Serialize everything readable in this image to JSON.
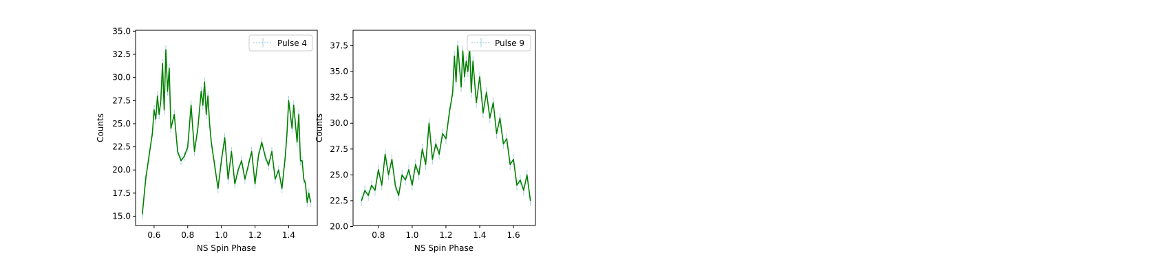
{
  "chart_data": [
    {
      "type": "line",
      "xlabel": "NS Spin Phase",
      "ylabel": "Counts",
      "xlim": [
        0.49,
        1.57
      ],
      "ylim": [
        14.0,
        35.1
      ],
      "xticks": [
        "0.6",
        "0.8",
        "1.0",
        "1.2",
        "1.4"
      ],
      "yticks": [
        "15.0",
        "17.5",
        "20.0",
        "22.5",
        "25.0",
        "27.5",
        "30.0",
        "32.5",
        "35.0"
      ],
      "legend": {
        "placement": "top-right",
        "label": "Pulse 4"
      },
      "series": [
        {
          "name": "Pulse 4",
          "color": "#008000",
          "errorbar_color": "#a6cee3",
          "error": 0.5,
          "x": [
            0.53,
            0.55,
            0.57,
            0.59,
            0.6,
            0.61,
            0.62,
            0.63,
            0.64,
            0.65,
            0.66,
            0.67,
            0.68,
            0.69,
            0.7,
            0.72,
            0.74,
            0.76,
            0.78,
            0.8,
            0.82,
            0.84,
            0.86,
            0.88,
            0.89,
            0.9,
            0.91,
            0.92,
            0.93,
            0.94,
            0.96,
            0.98,
            1.0,
            1.02,
            1.04,
            1.06,
            1.08,
            1.1,
            1.12,
            1.14,
            1.16,
            1.18,
            1.2,
            1.22,
            1.24,
            1.26,
            1.28,
            1.3,
            1.32,
            1.34,
            1.36,
            1.38,
            1.39,
            1.4,
            1.41,
            1.42,
            1.43,
            1.44,
            1.45,
            1.46,
            1.47,
            1.48,
            1.49,
            1.5,
            1.51,
            1.52,
            1.53
          ],
          "y": [
            15.2,
            19.0,
            21.5,
            24.0,
            26.5,
            25.5,
            28.0,
            26.0,
            27.5,
            31.5,
            26.5,
            33.0,
            28.5,
            31.0,
            24.5,
            26.0,
            22.0,
            21.0,
            21.5,
            22.5,
            27.0,
            22.0,
            24.5,
            28.5,
            27.0,
            29.5,
            26.0,
            28.0,
            25.0,
            23.0,
            20.5,
            18.0,
            21.0,
            23.5,
            19.0,
            22.0,
            18.5,
            20.0,
            21.0,
            19.0,
            20.5,
            22.0,
            18.5,
            21.5,
            23.0,
            21.5,
            20.5,
            22.0,
            19.0,
            20.0,
            18.0,
            21.5,
            24.0,
            27.5,
            26.0,
            24.5,
            27.0,
            25.0,
            23.0,
            26.0,
            21.0,
            21.0,
            19.0,
            18.5,
            16.5,
            17.5,
            16.5
          ]
        }
      ]
    },
    {
      "type": "line",
      "xlabel": "NS Spin Phase",
      "ylabel": "Counts",
      "xlim": [
        0.65,
        1.73
      ],
      "ylim": [
        20.1,
        39.0
      ],
      "xticks": [
        "0.8",
        "1.0",
        "1.2",
        "1.4",
        "1.6"
      ],
      "yticks": [
        "20.0",
        "22.5",
        "25.0",
        "27.5",
        "30.0",
        "32.5",
        "35.0",
        "37.5"
      ],
      "legend": {
        "placement": "top-right",
        "label": "Pulse 9"
      },
      "series": [
        {
          "name": "Pulse 9",
          "color": "#008000",
          "errorbar_color": "#a6cee3",
          "error": 0.5,
          "x": [
            0.7,
            0.72,
            0.74,
            0.76,
            0.78,
            0.8,
            0.82,
            0.84,
            0.86,
            0.88,
            0.9,
            0.92,
            0.94,
            0.96,
            0.98,
            1.0,
            1.02,
            1.04,
            1.06,
            1.08,
            1.1,
            1.12,
            1.14,
            1.16,
            1.18,
            1.2,
            1.22,
            1.24,
            1.25,
            1.26,
            1.27,
            1.28,
            1.29,
            1.3,
            1.31,
            1.32,
            1.33,
            1.34,
            1.35,
            1.36,
            1.38,
            1.4,
            1.42,
            1.44,
            1.46,
            1.48,
            1.5,
            1.52,
            1.54,
            1.56,
            1.58,
            1.6,
            1.62,
            1.64,
            1.66,
            1.68,
            1.7
          ],
          "y": [
            22.5,
            23.5,
            23.0,
            24.0,
            23.5,
            25.5,
            24.0,
            27.0,
            25.0,
            26.5,
            24.0,
            23.0,
            25.0,
            24.5,
            25.5,
            24.0,
            26.0,
            25.0,
            27.5,
            26.0,
            30.0,
            26.5,
            28.0,
            27.0,
            29.0,
            28.5,
            31.0,
            33.0,
            36.5,
            34.0,
            37.5,
            35.5,
            33.5,
            37.0,
            34.5,
            36.0,
            35.0,
            37.5,
            33.0,
            36.0,
            32.0,
            34.5,
            31.0,
            33.0,
            30.5,
            32.0,
            29.0,
            30.5,
            28.0,
            28.5,
            26.0,
            26.5,
            24.0,
            24.5,
            23.5,
            25.0,
            22.5
          ]
        }
      ]
    }
  ]
}
